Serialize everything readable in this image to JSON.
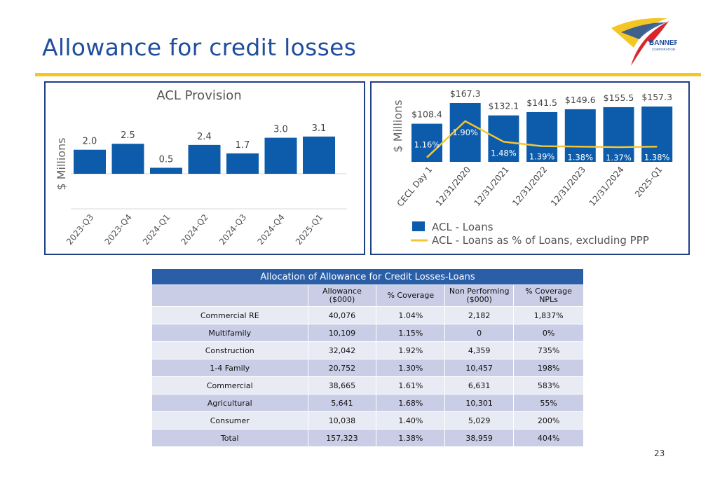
{
  "page": {
    "title": "Allowance for credit losses",
    "page_number": "23"
  },
  "logo": {
    "name": "BANNER",
    "subtitle": "CORPORATION"
  },
  "colors": {
    "accent": "#f3c623",
    "bar": "#0d5cab",
    "line": "#f5c534",
    "title": "#1f4e9c"
  },
  "chart_data": [
    {
      "type": "bar",
      "title": "ACL Provision",
      "ylabel": "$ Millions",
      "categories": [
        "2023-Q3",
        "2023-Q4",
        "2024-Q1",
        "2024-Q2",
        "2024-Q3",
        "2024-Q4",
        "2025-Q1"
      ],
      "values": [
        2.0,
        2.5,
        0.5,
        2.4,
        1.7,
        3.0,
        3.1
      ],
      "data_labels": [
        "2.0",
        "2.5",
        "0.5",
        "2.4",
        "1.7",
        "3.0",
        "3.1"
      ],
      "ylim": [
        0,
        4.2
      ],
      "grid": true
    },
    {
      "type": "bar",
      "ylabel": "$ Millions",
      "categories": [
        "CECL Day 1",
        "12/31/2020",
        "12/31/2021",
        "12/31/2022",
        "12/31/2023",
        "12/31/2024",
        "2025-Q1"
      ],
      "series": [
        {
          "name": "ACL - Loans",
          "type": "bar",
          "values": [
            108.4,
            167.3,
            132.1,
            141.5,
            149.6,
            155.5,
            157.3
          ],
          "data_labels": [
            "$108.4",
            "$167.3",
            "$132.1",
            "$141.5",
            "$149.6",
            "$155.5",
            "$157.3"
          ]
        },
        {
          "name": "ACL - Loans as % of Loans, excluding PPP",
          "type": "line",
          "values": [
            1.16,
            1.9,
            1.48,
            1.39,
            1.38,
            1.37,
            1.38
          ],
          "data_labels": [
            "1.16%",
            "1.90%",
            "1.48%",
            "1.39%",
            "1.38%",
            "1.37%",
            "1.38%"
          ]
        }
      ],
      "legend": "bottom-left"
    }
  ],
  "table": {
    "caption": "Allocation of Allowance for Credit Losses-Loans",
    "headers": [
      [
        "",
        ""
      ],
      [
        "Allowance",
        "($000)"
      ],
      [
        "% Coverage",
        ""
      ],
      [
        "Non Performing",
        "($000)"
      ],
      [
        "% Coverage",
        "NPLs"
      ]
    ],
    "rows": [
      [
        "Commercial RE",
        "40,076",
        "1.04%",
        "2,182",
        "1,837%"
      ],
      [
        "Multifamily",
        "10,109",
        "1.15%",
        "0",
        "0%"
      ],
      [
        "Construction",
        "32,042",
        "1.92%",
        "4,359",
        "735%"
      ],
      [
        "1-4 Family",
        "20,752",
        "1.30%",
        "10,457",
        "198%"
      ],
      [
        "Commercial",
        "38,665",
        "1.61%",
        "6,631",
        "583%"
      ],
      [
        "Agricultural",
        "5,641",
        "1.68%",
        "10,301",
        "55%"
      ],
      [
        "Consumer",
        "10,038",
        "1.40%",
        "5,029",
        "200%"
      ],
      [
        "Total",
        "157,323",
        "1.38%",
        "38,959",
        "404%"
      ]
    ]
  }
}
